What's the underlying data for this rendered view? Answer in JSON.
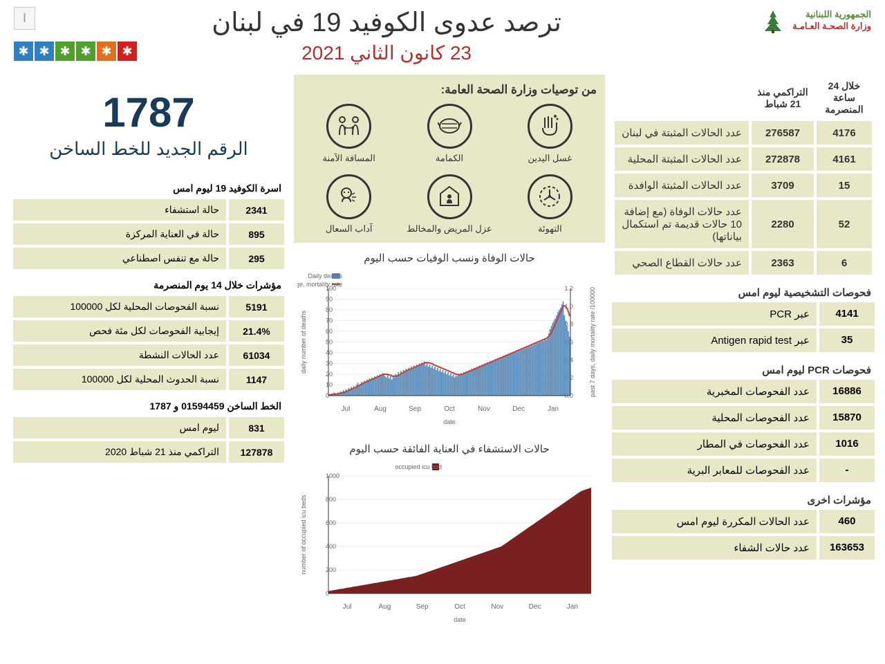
{
  "header": {
    "republic": "الجمهورية اللبنانية",
    "ministry": "وزارة الصحـة العـامـة",
    "title": "ترصد عدوى الكوفيد 19 في لبنان",
    "date": "23 كانون الثاني 2021",
    "page": "I",
    "box_colors": [
      "#d02020",
      "#e07020",
      "#50a030",
      "#50a030",
      "#3080c0",
      "#3080c0"
    ]
  },
  "main_stats": {
    "col1_header": "خلال 24 ساعة المنصرمة",
    "col2_header": "التراكمي منذ 21 شباط",
    "rows": [
      {
        "c1": "4176",
        "c2": "276587",
        "label": "عدد الحالات المثبتة في لبنان"
      },
      {
        "c1": "4161",
        "c2": "272878",
        "label": "عدد الحالات المثبتة المحلية"
      },
      {
        "c1": "15",
        "c2": "3709",
        "label": "عدد الحالات المثبتة الوافدة"
      },
      {
        "c1": "52",
        "c2": "2280",
        "label": "عدد حالات الوفاة (مع إضافة 10 حالات قديمة تم استكمال بياناتها)"
      },
      {
        "c1": "6",
        "c2": "2363",
        "label": "عدد حالات القطاع الصحي"
      }
    ]
  },
  "diag_yesterday": {
    "title": "فحوصات التشخيصية ليوم امس",
    "rows": [
      {
        "num": "4141",
        "label": "عبر PCR"
      },
      {
        "num": "35",
        "label": "عبر Antigen rapid test"
      }
    ]
  },
  "pcr_yesterday": {
    "title": "فحوصات PCR ليوم امس",
    "rows": [
      {
        "num": "16886",
        "label": "عدد الفحوصات المخبرية"
      },
      {
        "num": "15870",
        "label": "عدد الفحوصات المحلية"
      },
      {
        "num": "1016",
        "label": "عدد الفحوصات في المطار"
      },
      {
        "num": "-",
        "label": "عدد الفحوصات للمعابر البرية"
      }
    ]
  },
  "other": {
    "title": "مؤشرات اخرى",
    "rows": [
      {
        "num": "460",
        "label": "عدد الحالات المكررة  ليوم امس"
      },
      {
        "num": "163653",
        "label": "عدد حالات الشفاء"
      }
    ]
  },
  "recommendations": {
    "title": "من توصيات وزارة الصحة العامة:",
    "items": [
      {
        "label": "غسل اليدين",
        "icon": "hands"
      },
      {
        "label": "الكمامة",
        "icon": "mask"
      },
      {
        "label": "المسافة الآمنة",
        "icon": "distance"
      },
      {
        "label": "التهوئة",
        "icon": "vent"
      },
      {
        "label": "عزل المريض والمخالط",
        "icon": "isolate"
      },
      {
        "label": "آداب السعال",
        "icon": "cough"
      }
    ]
  },
  "hotline": {
    "number": "1787",
    "text": "الرقم الجديد للخط الساخن"
  },
  "chart1": {
    "title": "حالات الوفاة ونسب الوفيات حسب اليوم",
    "legend1": "Daily deaths",
    "legend2": "Past 7 days, daily average, mortality rate",
    "ylabel1": "daily number of deaths",
    "ylabel2": "past 7 days, daily mortality rate /100000",
    "xlabel": "date",
    "months": [
      "Jul",
      "Aug",
      "Sep",
      "Oct",
      "Nov",
      "Dec",
      "Jan"
    ],
    "ylim1": [
      0,
      100
    ],
    "ytick1": 10,
    "ylim2": [
      0,
      1.2
    ],
    "ytick2": 0.2,
    "bar_color": "#5b8bb8",
    "line_color": "#c04040",
    "deaths": [
      1,
      0,
      2,
      1,
      3,
      2,
      1,
      3,
      2,
      4,
      3,
      5,
      4,
      6,
      5,
      7,
      6,
      8,
      7,
      9,
      8,
      10,
      12,
      10,
      11,
      13,
      12,
      14,
      13,
      15,
      14,
      16,
      15,
      17,
      16,
      18,
      17,
      19,
      18,
      20,
      19,
      21,
      20,
      18,
      17,
      19,
      16,
      18,
      15,
      19,
      17,
      20,
      18,
      22,
      20,
      23,
      21,
      24,
      22,
      25,
      23,
      26,
      24,
      27,
      25,
      28,
      26,
      29,
      27,
      30,
      28,
      31,
      29,
      32,
      28,
      30,
      27,
      29,
      26,
      28,
      25,
      27,
      24,
      26,
      23,
      25,
      22,
      24,
      21,
      23,
      20,
      22,
      19,
      21,
      18,
      20,
      17,
      19,
      18,
      20,
      19,
      21,
      20,
      22,
      21,
      23,
      22,
      24,
      23,
      25,
      24,
      26,
      25,
      27,
      26,
      28,
      27,
      29,
      28,
      30,
      29,
      31,
      30,
      32,
      31,
      33,
      32,
      34,
      33,
      35,
      34,
      36,
      35,
      37,
      36,
      38,
      37,
      39,
      38,
      40,
      39,
      41,
      40,
      42,
      41,
      43,
      42,
      44,
      43,
      45,
      44,
      46,
      45,
      47,
      46,
      48,
      47,
      49,
      48,
      50,
      49,
      51,
      50,
      52,
      51,
      53,
      52,
      55,
      58,
      62,
      65,
      68,
      70,
      72,
      75,
      78,
      80,
      82,
      85,
      88,
      75,
      70,
      65,
      60,
      55
    ]
  },
  "chart2": {
    "title": "حالات الاستشفاء في العناية الفائقة حسب اليوم",
    "legend": "occupied icu bed",
    "ylabel": "number of occupied icu beds",
    "xlabel": "date",
    "months": [
      "Jul",
      "Aug",
      "Sep",
      "Oct",
      "Nov",
      "Dec",
      "Jan"
    ],
    "ylim": [
      0,
      1000
    ],
    "ytick": 200,
    "fill_color": "#7a2020",
    "icu": [
      20,
      22,
      25,
      28,
      30,
      32,
      35,
      38,
      40,
      42,
      45,
      48,
      50,
      52,
      55,
      58,
      60,
      62,
      65,
      68,
      70,
      72,
      75,
      78,
      80,
      82,
      85,
      88,
      90,
      92,
      95,
      98,
      100,
      102,
      105,
      108,
      110,
      112,
      115,
      118,
      120,
      122,
      125,
      128,
      130,
      132,
      135,
      138,
      140,
      142,
      145,
      148,
      150,
      155,
      160,
      165,
      170,
      175,
      180,
      185,
      190,
      195,
      200,
      205,
      210,
      215,
      220,
      225,
      230,
      235,
      240,
      245,
      250,
      255,
      260,
      265,
      270,
      275,
      280,
      285,
      290,
      295,
      300,
      305,
      310,
      315,
      320,
      325,
      330,
      335,
      340,
      345,
      350,
      355,
      360,
      365,
      370,
      375,
      380,
      385,
      390,
      395,
      400,
      410,
      420,
      430,
      440,
      450,
      460,
      470,
      480,
      490,
      500,
      510,
      520,
      530,
      540,
      550,
      560,
      570,
      580,
      590,
      600,
      610,
      620,
      630,
      640,
      650,
      660,
      670,
      680,
      690,
      700,
      710,
      720,
      730,
      740,
      750,
      760,
      770,
      780,
      790,
      800,
      810,
      820,
      830,
      840,
      850,
      860,
      870,
      875,
      880,
      885,
      890,
      895,
      900
    ]
  },
  "beds": {
    "title": "اسرة الكوفيد 19 ليوم امس",
    "rows": [
      {
        "num": "2341",
        "label": "حالة استشفاء"
      },
      {
        "num": "895",
        "label": "حالة في العناية المركزة"
      },
      {
        "num": "295",
        "label": "حالة مع تنفس اصطناعي"
      }
    ]
  },
  "indicators14": {
    "title": "مؤشرات خلال 14 يوم المنصرمة",
    "rows": [
      {
        "num": "5191",
        "label": "نسبة الفحوصات  المحلية لكل 100000"
      },
      {
        "num": "21.4%",
        "label": "إيجابية الفحوصات لكل مئة فحص"
      },
      {
        "num": "61034",
        "label": "عدد الحالات النشطة"
      },
      {
        "num": "1147",
        "label": "نسبة الحدوث المحلية لكل 100000"
      }
    ]
  },
  "hotline_stats": {
    "title": "الخط الساخن 01594459 و 1787",
    "rows": [
      {
        "num": "831",
        "label": "ليوم امس"
      },
      {
        "num": "127878",
        "label": "التراكمي منذ 21 شباط 2020"
      }
    ]
  },
  "colors": {
    "cell_bg": "#e8e8c8"
  }
}
